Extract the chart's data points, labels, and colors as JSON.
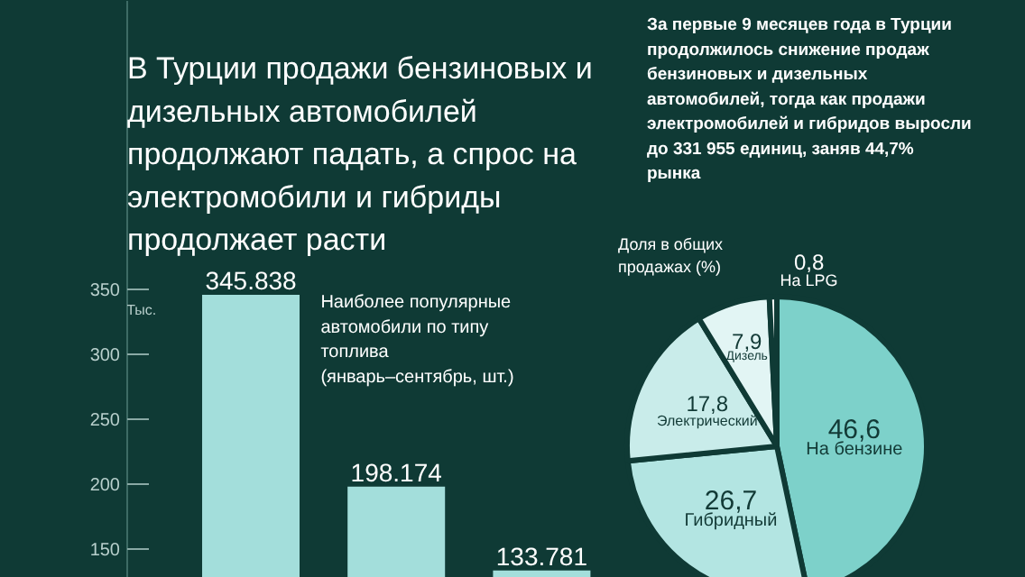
{
  "chart_data": [
    {
      "type": "bar",
      "title": "В Турции продажи бензиновых и дизельных автомобилей продолжают падать, а спрос на электромобили и гибриды продолжает расти",
      "subtitle": "Наиболее популярные автомобили по типу топлива (январь–сентябрь, шт.)",
      "ylabel": "Тыс.",
      "categories": [
        null,
        null,
        null
      ],
      "values": [
        345.838,
        198.174,
        133.781
      ],
      "color": "#a3dedb",
      "ylim": [
        128,
        572
      ],
      "yticks": [
        150,
        200,
        250,
        300,
        350
      ],
      "data_labels": true,
      "grid": false,
      "legend": false
    },
    {
      "type": "pie",
      "subtitle": "Доля в общих продажах (%)",
      "annotations": [
        "За первые 9 месяцев года в Турции продолжилось снижение продаж бензиновых и дизельных автомобилей, тогда как продажи электромобилей и гибридов выросли до 331 955 единиц, заняв 44,7% рынка"
      ],
      "categories": [
        "На бензине",
        "Гибридный",
        "Электрический",
        "Дизель",
        "На LPG"
      ],
      "values": [
        46.6,
        26.7,
        17.8,
        7.9,
        0.8
      ],
      "value_labels": [
        "46,6",
        "26,7",
        "17,8",
        "7,9",
        "0,8"
      ],
      "colors": [
        "#7dd1ca",
        "#b3e5e2",
        "#c9ecea",
        "#e2f5f4",
        "#ffffff"
      ],
      "legend": false
    }
  ]
}
